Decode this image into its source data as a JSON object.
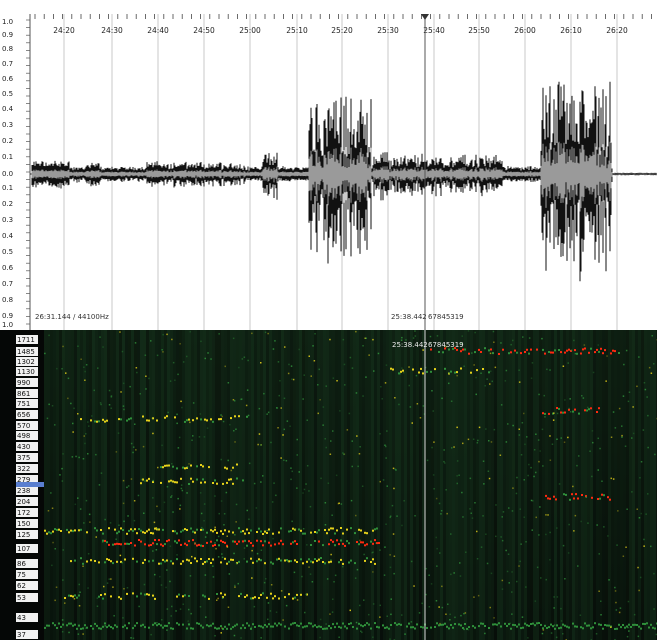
{
  "timeline": {
    "labels": [
      "24:20",
      "24:30",
      "24:40",
      "24:50",
      "25:00",
      "25:10",
      "25:20",
      "25:30",
      "25:40",
      "25:50",
      "26:00",
      "26:10",
      "26:20"
    ]
  },
  "waveform": {
    "amplitude_labels": [
      "1.0",
      "0.9",
      "0.8",
      "0.7",
      "0.6",
      "0.5",
      "0.4",
      "0.3",
      "0.2",
      "0.1",
      "0.0",
      "0.1",
      "0.2",
      "0.3",
      "0.4",
      "0.5",
      "0.6",
      "0.7",
      "0.8",
      "0.9",
      "1.0"
    ],
    "duration_info": "26:31.144 / 44100Hz",
    "cursor_time": "25:38.442",
    "cursor_sample": "67845319"
  },
  "spectrogram": {
    "frequency_labels": [
      "1711",
      "1485",
      "1302",
      "1130",
      "990",
      "861",
      "751",
      "656",
      "570",
      "498",
      "430",
      "375",
      "322",
      "279",
      "238",
      "204",
      "172",
      "150",
      "125",
      "107",
      "86",
      "75",
      "62",
      "53",
      "43",
      "37"
    ],
    "cursor_time": "25:38.442",
    "cursor_sample": "67845319"
  },
  "colors": {
    "waveform_outer": "#111111",
    "waveform_inner": "#9a9a9a",
    "spectrogram_bg": "#050706",
    "hot": "#ff2a10",
    "warm": "#e6d21a",
    "cool": "#2f8f3a"
  }
}
